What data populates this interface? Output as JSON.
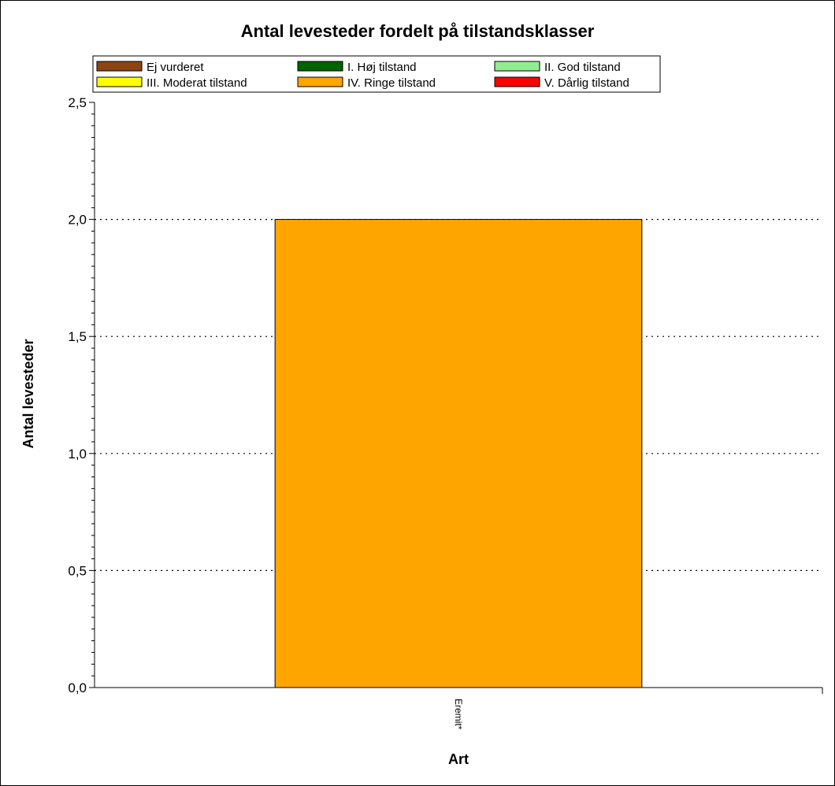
{
  "chart_data": {
    "type": "bar",
    "title": "Antal levesteder fordelt på tilstandsklasser",
    "xlabel": "Art",
    "ylabel": "Antal levesteder",
    "categories": [
      "Eremit*"
    ],
    "ylim": [
      0,
      2.5
    ],
    "yticks": [
      "0,0",
      "0,5",
      "1,0",
      "1,5",
      "2,0",
      "2,5"
    ],
    "grid": true,
    "legend_position": "top",
    "series": [
      {
        "name": "Ej vurderet",
        "color": "#8B4513",
        "values": [
          0
        ]
      },
      {
        "name": "I. Høj tilstand",
        "color": "#006400",
        "values": [
          0
        ]
      },
      {
        "name": "II. God tilstand",
        "color": "#90EE90",
        "values": [
          0
        ]
      },
      {
        "name": "III. Moderat tilstand",
        "color": "#FFFF00",
        "values": [
          0
        ]
      },
      {
        "name": "IV. Ringe tilstand",
        "color": "#FFA500",
        "values": [
          2
        ]
      },
      {
        "name": "V. Dårlig tilstand",
        "color": "#FF0000",
        "values": [
          0
        ]
      }
    ]
  }
}
